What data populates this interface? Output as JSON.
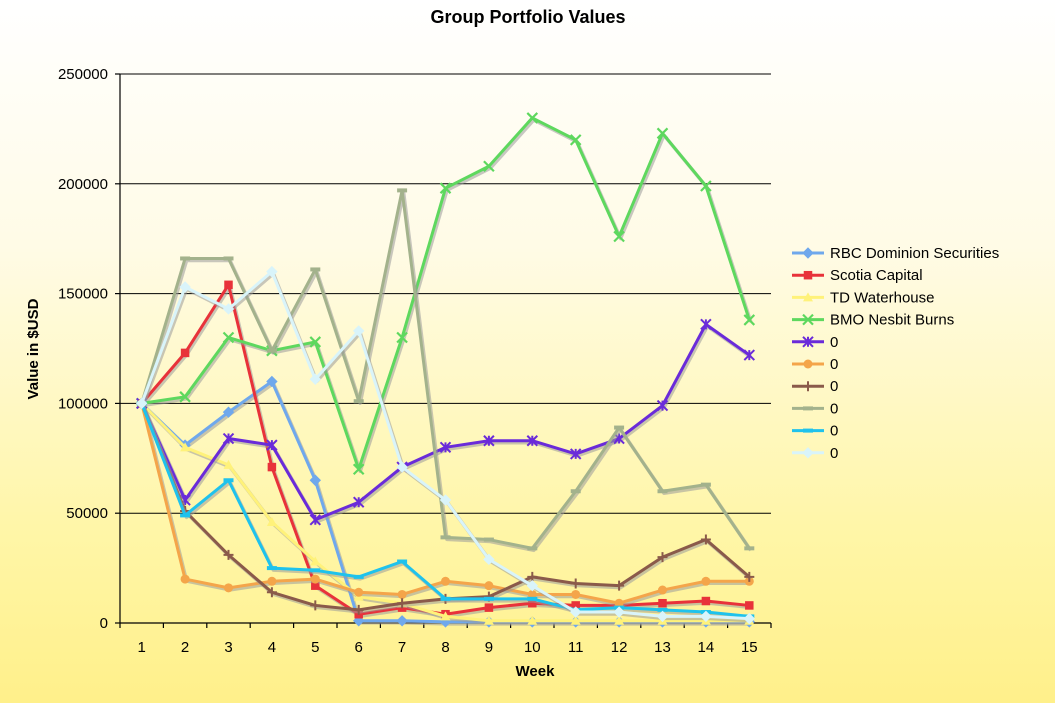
{
  "chart_data": {
    "type": "line",
    "title": "Group Portfolio Values",
    "xlabel": "Week",
    "ylabel": "Value in $USD",
    "x": [
      1,
      2,
      3,
      4,
      5,
      6,
      7,
      8,
      9,
      10,
      11,
      12,
      13,
      14,
      15
    ],
    "ylim": [
      0,
      250000
    ],
    "yticks": [
      "0",
      "50000",
      "100000",
      "150000",
      "200000",
      "250000"
    ],
    "grid": "horizontal",
    "legend_position": "right",
    "series": [
      {
        "name": "RBC Dominion Securities",
        "color": "#6fa8ec",
        "marker": "diamond",
        "values": [
          100000,
          81000,
          96000,
          110000,
          65000,
          1000,
          1000,
          500,
          500,
          500,
          500,
          500,
          500,
          500,
          500
        ]
      },
      {
        "name": "Scotia Capital",
        "color": "#e8323a",
        "marker": "square",
        "values": [
          100000,
          123000,
          154000,
          71000,
          17000,
          4000,
          7000,
          4000,
          7000,
          9000,
          8000,
          8000,
          9000,
          10000,
          8000
        ]
      },
      {
        "name": "TD Waterhouse",
        "color": "#fff27a",
        "marker": "triangle",
        "values": [
          100000,
          80000,
          72000,
          46000,
          28000,
          12000,
          9000,
          3000,
          1000,
          1000,
          1000,
          1000,
          1000,
          1000,
          1000
        ]
      },
      {
        "name": "BMO Nesbit Burns",
        "color": "#5ed85e",
        "marker": "x",
        "values": [
          100000,
          103000,
          130000,
          124000,
          128000,
          70000,
          130000,
          198000,
          208000,
          230000,
          220000,
          176000,
          223000,
          199000,
          138000
        ]
      },
      {
        "name": "0",
        "color": "#6a2bd9",
        "marker": "star",
        "values": [
          100000,
          56000,
          84000,
          81000,
          47000,
          55000,
          71000,
          80000,
          83000,
          83000,
          77000,
          84000,
          99000,
          136000,
          122000
        ]
      },
      {
        "name": "0",
        "color": "#f4a54a",
        "marker": "circle",
        "values": [
          100000,
          20000,
          16000,
          19000,
          20000,
          14000,
          13000,
          19000,
          17000,
          13000,
          13000,
          9000,
          15000,
          19000,
          19000
        ]
      },
      {
        "name": "0",
        "color": "#8a5a4a",
        "marker": "plus",
        "values": [
          100000,
          51000,
          31000,
          14000,
          8000,
          6000,
          9000,
          11000,
          12000,
          21000,
          18000,
          17000,
          30000,
          38000,
          21000
        ]
      },
      {
        "name": "0",
        "color": "#a3b28c",
        "marker": "dash",
        "values": [
          100000,
          166000,
          166000,
          124000,
          161000,
          101000,
          197000,
          39000,
          38000,
          34000,
          60000,
          89000,
          60000,
          63000,
          34000
        ]
      },
      {
        "name": "0",
        "color": "#1fc2ec",
        "marker": "dash",
        "values": [
          100000,
          49000,
          65000,
          25000,
          24000,
          21000,
          28000,
          11000,
          11000,
          11000,
          6000,
          7000,
          6000,
          5000,
          3000
        ]
      },
      {
        "name": "0",
        "color": "#d9f4fa",
        "marker": "diamond",
        "values": [
          100000,
          153000,
          143000,
          160000,
          111000,
          133000,
          71000,
          56000,
          29000,
          17000,
          5000,
          5000,
          3000,
          3000,
          2000
        ]
      }
    ]
  }
}
